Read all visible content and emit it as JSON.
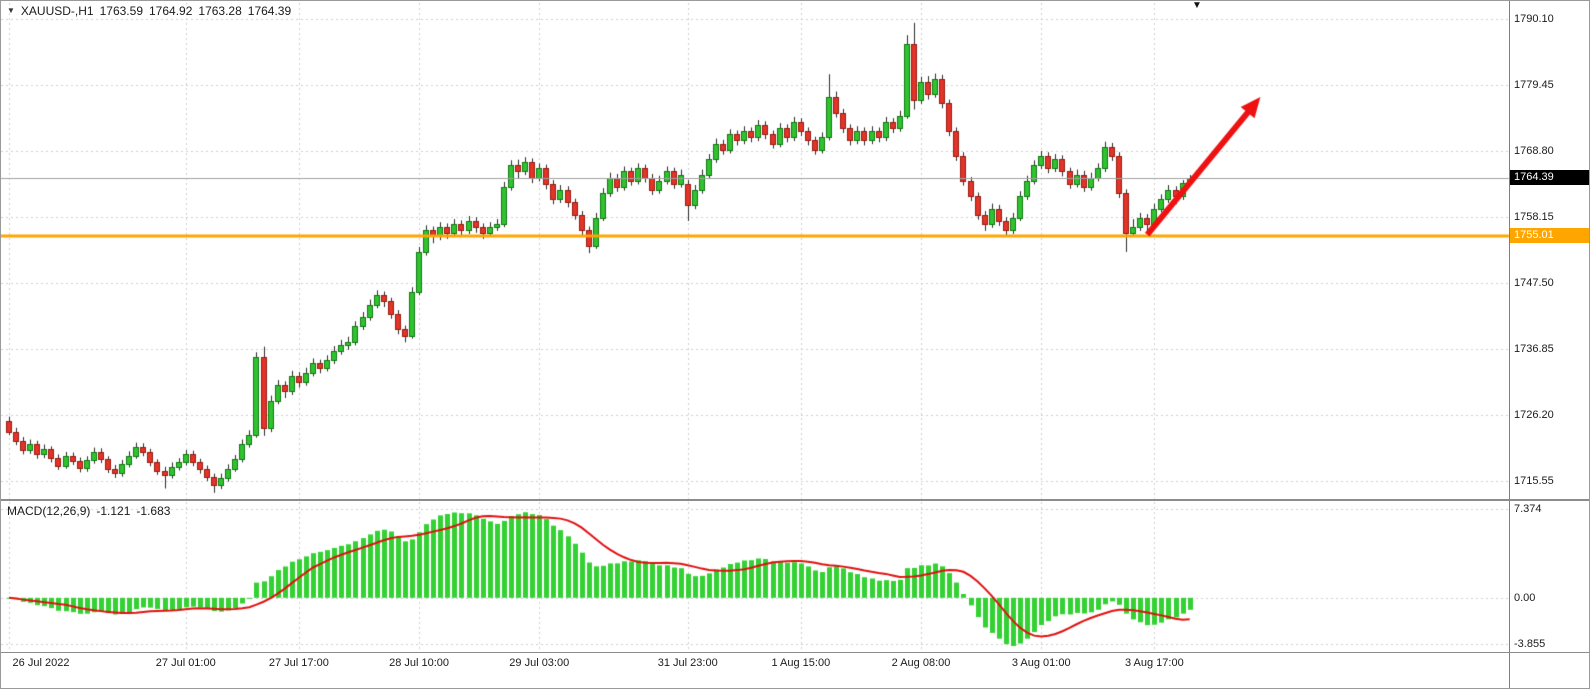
{
  "header": {
    "symbol_period": "XAUUSD-,H1",
    "open": "1763.59",
    "high": "1764.92",
    "low": "1763.28",
    "close": "1764.39"
  },
  "price_axis": {
    "labels": [
      "1790.10",
      "1779.45",
      "1768.80",
      "1758.15",
      "1747.50",
      "1736.85",
      "1726.20",
      "1715.55"
    ],
    "current_price": "1764.39",
    "support_price": "1755.01"
  },
  "macd_axis": {
    "labels": [
      "7.374",
      "0.00",
      "-3.855"
    ]
  },
  "indicator_header": {
    "name": "MACD(12,26,9)",
    "macd_value": "-1.121",
    "signal_value": "-1.683"
  },
  "colors": {
    "up_candle": "#30c230",
    "up_border": "#0e7a0e",
    "down_candle": "#e23428",
    "down_border": "#9a1b10",
    "wick": "#2b2b2b",
    "histogram": "#33d133",
    "signal_line": "#e01010",
    "support_line": "#ffa500",
    "price_line": "#a0a0a0",
    "grid": "#cfcfcf",
    "arrow": "#ee1111",
    "badge_current_bg": "#000000",
    "badge_support_bg": "#ffa500"
  },
  "chart_data": {
    "type": "candlestick",
    "title": "XAUUSD- H1 with MACD(12,26,9)",
    "symbol": "XAUUSD-",
    "timeframe": "H1",
    "price_ylim": [
      1712.6,
      1792.7
    ],
    "current_price": 1764.39,
    "support_line": 1755.01,
    "time_ticks": [
      {
        "bar": 0,
        "label": "26 Jul 2022"
      },
      {
        "bar": 25,
        "label": "27 Jul 01:00"
      },
      {
        "bar": 41,
        "label": "27 Jul 17:00"
      },
      {
        "bar": 58,
        "label": "28 Jul 10:00"
      },
      {
        "bar": 75,
        "label": "29 Jul 03:00"
      },
      {
        "bar": 96,
        "label": "31 Jul 23:00"
      },
      {
        "bar": 112,
        "label": "1 Aug 15:00"
      },
      {
        "bar": 129,
        "label": "2 Aug 08:00"
      },
      {
        "bar": 146,
        "label": "3 Aug 01:00"
      },
      {
        "bar": 162,
        "label": "3 Aug 17:00"
      }
    ],
    "indicator": {
      "name": "MACD",
      "fast": 12,
      "slow": 26,
      "signal": 9,
      "last_macd": -1.121,
      "last_signal": -1.683
    },
    "annotations": {
      "arrow": {
        "from": {
          "bar": 161,
          "price": 1755.3
        },
        "to": {
          "bar": 177,
          "price": 1777.5
        }
      }
    },
    "candles": [
      [
        1725.2,
        1725.9,
        1722.9,
        1723.5
      ],
      [
        1723.5,
        1724.1,
        1721.3,
        1722.0
      ],
      [
        1722.0,
        1722.6,
        1719.8,
        1720.5
      ],
      [
        1720.5,
        1722.2,
        1719.9,
        1721.5
      ],
      [
        1721.5,
        1722.0,
        1719.1,
        1719.8
      ],
      [
        1719.8,
        1721.4,
        1719.2,
        1720.6
      ],
      [
        1720.6,
        1721.1,
        1718.5,
        1719.2
      ],
      [
        1719.2,
        1719.8,
        1717.3,
        1718.0
      ],
      [
        1718.0,
        1720.2,
        1717.5,
        1719.5
      ],
      [
        1719.5,
        1720.1,
        1718.1,
        1718.8
      ],
      [
        1718.8,
        1719.3,
        1716.9,
        1717.6
      ],
      [
        1717.6,
        1719.5,
        1717.0,
        1718.9
      ],
      [
        1718.9,
        1720.9,
        1718.3,
        1720.2
      ],
      [
        1720.2,
        1720.8,
        1718.4,
        1719.0
      ],
      [
        1719.0,
        1719.5,
        1716.8,
        1717.5
      ],
      [
        1717.5,
        1718.1,
        1716.0,
        1716.8
      ],
      [
        1716.8,
        1718.9,
        1716.2,
        1718.2
      ],
      [
        1718.2,
        1720.3,
        1717.7,
        1719.6
      ],
      [
        1719.6,
        1721.7,
        1719.1,
        1721.0
      ],
      [
        1721.0,
        1721.6,
        1719.5,
        1720.2
      ],
      [
        1720.2,
        1720.7,
        1717.9,
        1718.5
      ],
      [
        1718.5,
        1719.0,
        1716.5,
        1717.2
      ],
      [
        1717.2,
        1717.8,
        1714.3,
        1716.5
      ],
      [
        1716.5,
        1718.5,
        1715.9,
        1717.8
      ],
      [
        1717.8,
        1719.2,
        1717.2,
        1718.5
      ],
      [
        1718.5,
        1720.5,
        1718.0,
        1719.8
      ],
      [
        1719.8,
        1720.4,
        1717.9,
        1718.6
      ],
      [
        1718.6,
        1719.1,
        1716.7,
        1717.4
      ],
      [
        1717.4,
        1718.0,
        1715.5,
        1716.2
      ],
      [
        1716.2,
        1716.7,
        1713.6,
        1714.8
      ],
      [
        1714.8,
        1716.7,
        1714.2,
        1716.0
      ],
      [
        1716.0,
        1718.2,
        1715.4,
        1717.5
      ],
      [
        1717.5,
        1719.7,
        1717.0,
        1719.0
      ],
      [
        1719.0,
        1722.2,
        1718.5,
        1721.5
      ],
      [
        1721.5,
        1723.7,
        1720.9,
        1723.0
      ],
      [
        1723.0,
        1736.3,
        1722.5,
        1735.5
      ],
      [
        1735.5,
        1737.2,
        1722.8,
        1724.0
      ],
      [
        1724.0,
        1729.3,
        1723.4,
        1728.5
      ],
      [
        1728.5,
        1731.8,
        1727.9,
        1731.0
      ],
      [
        1731.0,
        1731.6,
        1728.9,
        1730.0
      ],
      [
        1730.0,
        1733.3,
        1729.4,
        1732.5
      ],
      [
        1732.5,
        1733.1,
        1730.6,
        1731.5
      ],
      [
        1731.5,
        1733.8,
        1730.9,
        1733.0
      ],
      [
        1733.0,
        1735.3,
        1732.4,
        1734.5
      ],
      [
        1734.5,
        1735.1,
        1732.9,
        1733.8
      ],
      [
        1733.8,
        1735.8,
        1733.2,
        1735.0
      ],
      [
        1735.0,
        1737.3,
        1734.4,
        1736.5
      ],
      [
        1736.5,
        1738.3,
        1735.9,
        1737.5
      ],
      [
        1737.5,
        1738.8,
        1736.7,
        1738.0
      ],
      [
        1738.0,
        1741.3,
        1737.4,
        1740.5
      ],
      [
        1740.5,
        1742.8,
        1739.9,
        1742.0
      ],
      [
        1742.0,
        1744.8,
        1741.4,
        1744.0
      ],
      [
        1744.0,
        1746.3,
        1743.4,
        1745.5
      ],
      [
        1745.5,
        1746.1,
        1743.6,
        1744.5
      ],
      [
        1744.5,
        1745.1,
        1741.7,
        1742.5
      ],
      [
        1742.5,
        1743.1,
        1739.2,
        1740.0
      ],
      [
        1740.0,
        1740.6,
        1737.9,
        1739.0
      ],
      [
        1739.0,
        1746.8,
        1738.5,
        1746.0
      ],
      [
        1746.0,
        1753.3,
        1745.5,
        1752.5
      ],
      [
        1752.5,
        1756.8,
        1751.9,
        1756.0
      ],
      [
        1756.0,
        1756.6,
        1753.9,
        1755.0
      ],
      [
        1755.0,
        1757.3,
        1754.4,
        1756.5
      ],
      [
        1756.5,
        1757.1,
        1754.6,
        1755.5
      ],
      [
        1755.5,
        1757.8,
        1754.9,
        1757.0
      ],
      [
        1757.0,
        1757.6,
        1755.1,
        1756.0
      ],
      [
        1756.0,
        1758.3,
        1755.4,
        1757.5
      ],
      [
        1757.5,
        1758.1,
        1755.6,
        1756.5
      ],
      [
        1756.5,
        1757.1,
        1754.6,
        1755.5
      ],
      [
        1755.5,
        1757.3,
        1754.9,
        1756.5
      ],
      [
        1756.5,
        1757.8,
        1755.9,
        1757.0
      ],
      [
        1757.0,
        1763.8,
        1756.5,
        1763.0
      ],
      [
        1763.0,
        1767.3,
        1762.4,
        1766.5
      ],
      [
        1766.5,
        1767.4,
        1764.4,
        1765.5
      ],
      [
        1765.5,
        1767.8,
        1764.9,
        1767.0
      ],
      [
        1767.0,
        1767.6,
        1763.6,
        1764.5
      ],
      [
        1764.5,
        1766.8,
        1763.9,
        1766.0
      ],
      [
        1766.0,
        1766.6,
        1762.6,
        1763.5
      ],
      [
        1763.5,
        1764.1,
        1760.2,
        1761.0
      ],
      [
        1761.0,
        1763.3,
        1760.4,
        1762.5
      ],
      [
        1762.5,
        1763.1,
        1759.7,
        1760.5
      ],
      [
        1760.5,
        1761.1,
        1757.7,
        1758.5
      ],
      [
        1758.5,
        1759.1,
        1755.2,
        1756.0
      ],
      [
        1756.0,
        1756.6,
        1752.3,
        1753.5
      ],
      [
        1753.5,
        1758.8,
        1753.0,
        1758.0
      ],
      [
        1758.0,
        1762.8,
        1757.5,
        1762.0
      ],
      [
        1762.0,
        1765.3,
        1761.4,
        1764.5
      ],
      [
        1764.5,
        1765.1,
        1762.2,
        1763.0
      ],
      [
        1763.0,
        1766.3,
        1762.4,
        1765.5
      ],
      [
        1765.5,
        1766.1,
        1763.2,
        1764.0
      ],
      [
        1764.0,
        1766.8,
        1763.4,
        1766.0
      ],
      [
        1766.0,
        1766.6,
        1763.7,
        1764.5
      ],
      [
        1764.5,
        1765.1,
        1761.7,
        1762.5
      ],
      [
        1762.5,
        1764.8,
        1761.9,
        1764.0
      ],
      [
        1764.0,
        1766.3,
        1763.4,
        1765.5
      ],
      [
        1765.5,
        1766.1,
        1762.7,
        1763.5
      ],
      [
        1763.5,
        1765.8,
        1762.9,
        1765.0
      ],
      [
        1763.5,
        1764.1,
        1757.5,
        1760.0
      ],
      [
        1760.0,
        1763.3,
        1759.4,
        1762.5
      ],
      [
        1762.5,
        1765.8,
        1761.9,
        1765.0
      ],
      [
        1765.0,
        1768.3,
        1764.4,
        1767.5
      ],
      [
        1767.5,
        1770.8,
        1766.9,
        1770.0
      ],
      [
        1770.0,
        1770.6,
        1768.2,
        1769.0
      ],
      [
        1769.0,
        1772.3,
        1768.4,
        1771.5
      ],
      [
        1771.5,
        1772.1,
        1769.7,
        1770.5
      ],
      [
        1770.5,
        1772.8,
        1769.9,
        1772.0
      ],
      [
        1772.0,
        1772.6,
        1770.2,
        1771.0
      ],
      [
        1771.0,
        1773.8,
        1770.4,
        1773.0
      ],
      [
        1773.0,
        1773.6,
        1770.7,
        1771.5
      ],
      [
        1771.5,
        1772.1,
        1769.2,
        1770.0
      ],
      [
        1770.0,
        1773.3,
        1769.4,
        1772.5
      ],
      [
        1772.5,
        1773.1,
        1770.2,
        1771.0
      ],
      [
        1771.0,
        1774.3,
        1770.4,
        1773.5
      ],
      [
        1773.5,
        1774.1,
        1771.2,
        1772.0
      ],
      [
        1772.0,
        1772.6,
        1769.7,
        1770.5
      ],
      [
        1770.5,
        1771.1,
        1768.2,
        1769.0
      ],
      [
        1769.0,
        1771.8,
        1768.4,
        1771.0
      ],
      [
        1771.0,
        1781.2,
        1770.5,
        1777.5
      ],
      [
        1777.5,
        1778.4,
        1774.2,
        1775.0
      ],
      [
        1775.0,
        1775.6,
        1771.7,
        1772.5
      ],
      [
        1772.5,
        1773.1,
        1769.7,
        1770.5
      ],
      [
        1770.5,
        1772.8,
        1769.9,
        1772.0
      ],
      [
        1772.0,
        1772.6,
        1769.7,
        1770.5
      ],
      [
        1770.5,
        1772.8,
        1769.9,
        1772.0
      ],
      [
        1772.0,
        1772.6,
        1770.2,
        1771.0
      ],
      [
        1771.0,
        1774.3,
        1770.4,
        1773.5
      ],
      [
        1773.5,
        1774.1,
        1771.7,
        1772.5
      ],
      [
        1772.5,
        1775.3,
        1771.9,
        1774.5
      ],
      [
        1774.5,
        1787.5,
        1774.0,
        1786.0
      ],
      [
        1786.0,
        1789.5,
        1775.5,
        1777.0
      ],
      [
        1777.0,
        1780.8,
        1776.4,
        1780.0
      ],
      [
        1780.0,
        1780.9,
        1777.1,
        1778.0
      ],
      [
        1778.0,
        1781.3,
        1777.4,
        1780.5
      ],
      [
        1780.5,
        1781.1,
        1775.7,
        1776.5
      ],
      [
        1776.5,
        1777.1,
        1771.2,
        1772.0
      ],
      [
        1772.0,
        1772.6,
        1767.2,
        1768.0
      ],
      [
        1768.0,
        1768.6,
        1763.2,
        1764.0
      ],
      [
        1764.0,
        1764.6,
        1760.7,
        1761.5
      ],
      [
        1761.5,
        1762.1,
        1757.7,
        1758.5
      ],
      [
        1758.5,
        1759.1,
        1755.9,
        1757.0
      ],
      [
        1757.0,
        1760.3,
        1756.4,
        1759.5
      ],
      [
        1759.5,
        1760.1,
        1756.7,
        1757.5
      ],
      [
        1757.5,
        1758.1,
        1754.9,
        1756.0
      ],
      [
        1756.0,
        1758.8,
        1755.4,
        1758.0
      ],
      [
        1758.0,
        1762.3,
        1757.5,
        1761.5
      ],
      [
        1761.5,
        1764.8,
        1760.9,
        1764.0
      ],
      [
        1764.0,
        1767.3,
        1763.4,
        1766.5
      ],
      [
        1766.5,
        1768.8,
        1765.9,
        1768.0
      ],
      [
        1768.0,
        1768.6,
        1765.2,
        1766.0
      ],
      [
        1766.0,
        1768.3,
        1765.4,
        1767.5
      ],
      [
        1767.5,
        1768.1,
        1764.7,
        1765.5
      ],
      [
        1765.5,
        1766.1,
        1762.7,
        1763.5
      ],
      [
        1763.5,
        1765.8,
        1762.9,
        1765.0
      ],
      [
        1765.0,
        1765.6,
        1762.2,
        1763.0
      ],
      [
        1763.0,
        1765.3,
        1762.4,
        1764.5
      ],
      [
        1764.5,
        1766.8,
        1763.9,
        1766.0
      ],
      [
        1766.0,
        1770.3,
        1765.4,
        1769.5
      ],
      [
        1769.5,
        1770.1,
        1767.2,
        1768.0
      ],
      [
        1768.0,
        1768.6,
        1761.2,
        1762.0
      ],
      [
        1762.0,
        1762.6,
        1752.5,
        1755.5
      ],
      [
        1755.5,
        1757.8,
        1754.9,
        1756.5
      ],
      [
        1756.5,
        1758.8,
        1755.9,
        1758.0
      ],
      [
        1758.0,
        1758.6,
        1755.7,
        1757.0
      ],
      [
        1757.0,
        1760.3,
        1756.4,
        1759.5
      ],
      [
        1759.5,
        1761.8,
        1758.9,
        1761.0
      ],
      [
        1761.0,
        1763.3,
        1760.4,
        1762.5
      ],
      [
        1762.5,
        1763.1,
        1760.2,
        1761.5
      ],
      [
        1761.5,
        1764.1,
        1760.9,
        1763.6
      ],
      [
        1763.59,
        1764.92,
        1763.28,
        1764.39
      ]
    ]
  }
}
